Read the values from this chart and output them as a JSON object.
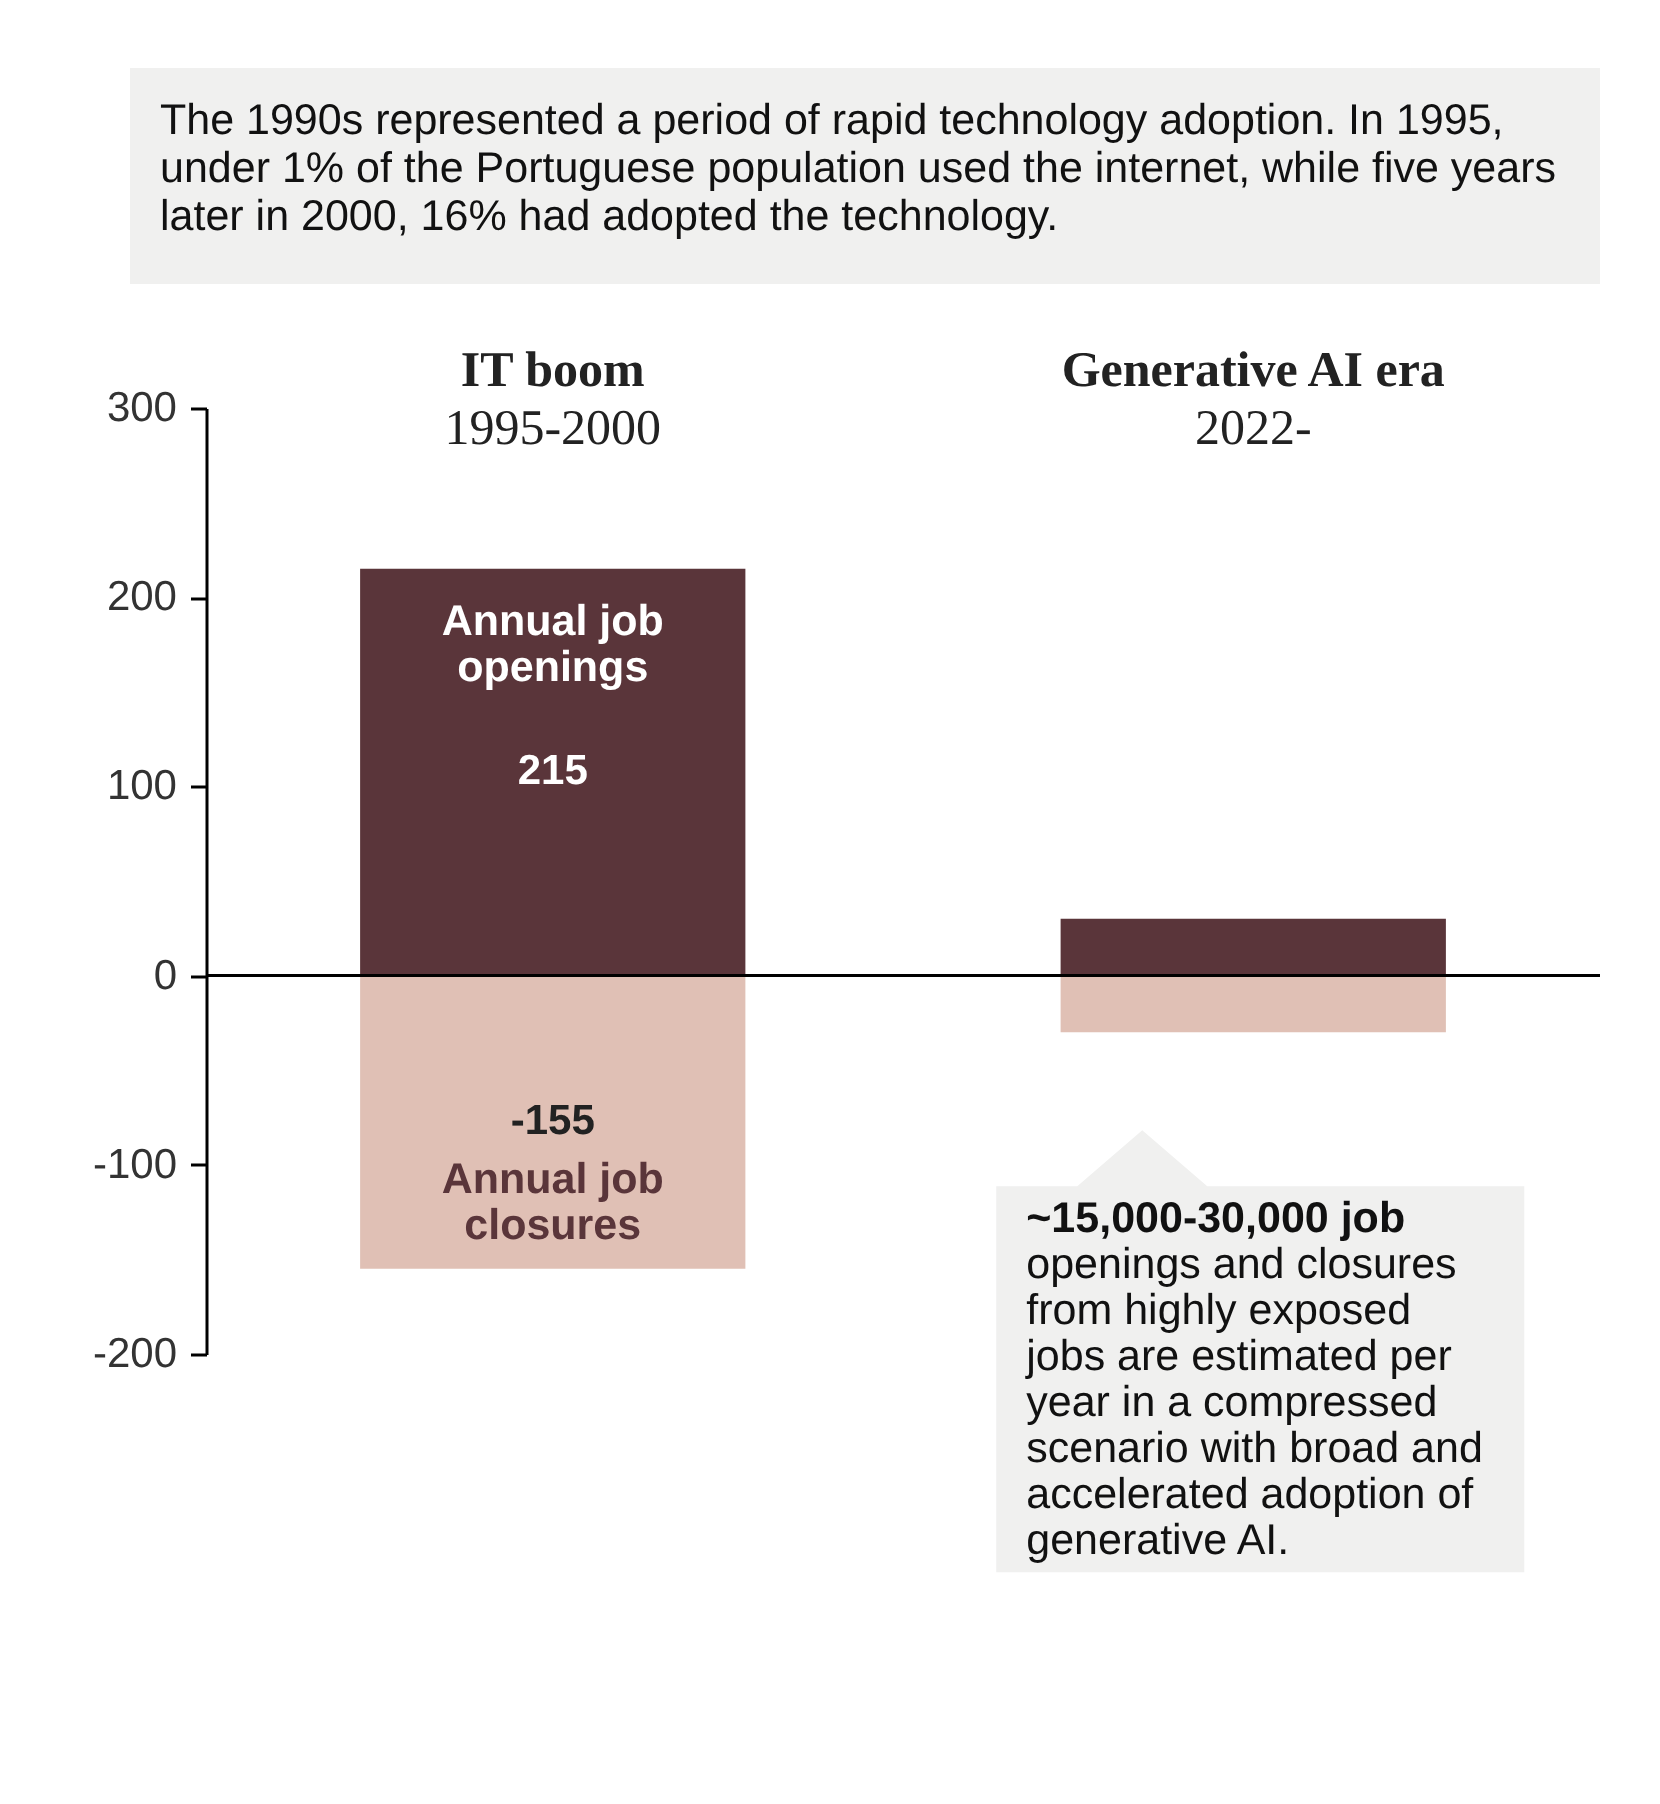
{
  "chart_data": {
    "type": "bar",
    "title": "The 1990s represented a period of rapid technology adoption. In 1995, under 1% of the Portuguese population used the internet, while five years later in 2000, 16% had adopted the technology.",
    "categories": [
      "IT boom\n1995-2000",
      "Generative AI era\n2022-"
    ],
    "series": [
      {
        "name": "Annual job openings",
        "color": "#5a353a",
        "values": [
          215,
          30
        ],
        "value_labels": [
          "215",
          null
        ]
      },
      {
        "name": "Annual job closures",
        "color": "#e0c0b5",
        "values": [
          -155,
          -30
        ],
        "value_labels": [
          "-155",
          null
        ]
      }
    ],
    "stacked": true,
    "ylim": [
      -200,
      300
    ],
    "yticks": [
      -200,
      -100,
      0,
      100,
      200,
      300
    ],
    "annotations": [
      "~15,000-30,000 job openings and closures from highly exposed jobs are estimated per year in a compressed scenario with broad and accelerated adoption of generative AI."
    ]
  }
}
